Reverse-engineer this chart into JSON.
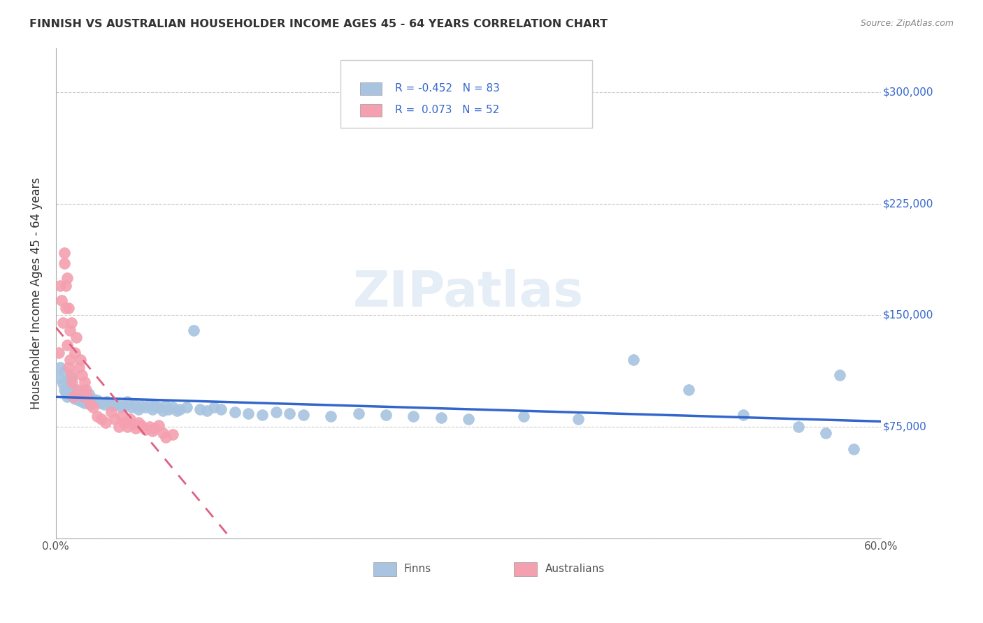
{
  "title": "FINNISH VS AUSTRALIAN HOUSEHOLDER INCOME AGES 45 - 64 YEARS CORRELATION CHART",
  "source": "Source: ZipAtlas.com",
  "ylabel": "Householder Income Ages 45 - 64 years",
  "xlim": [
    0.0,
    0.6
  ],
  "ylim": [
    0,
    330000
  ],
  "yticks": [
    0,
    75000,
    150000,
    225000,
    300000
  ],
  "xticks": [
    0.0,
    0.1,
    0.2,
    0.3,
    0.4,
    0.5,
    0.6
  ],
  "xtick_labels": [
    "0.0%",
    "",
    "",
    "",
    "",
    "",
    "60.0%"
  ],
  "finns_color": "#a8c4e0",
  "australians_color": "#f4a0b0",
  "finns_line_color": "#3366cc",
  "australians_line_color": "#e06080",
  "finns_R": -0.452,
  "finns_N": 83,
  "australians_R": 0.073,
  "australians_N": 52,
  "watermark": "ZIPatlas",
  "background_color": "#ffffff",
  "grid_color": "#cccccc",
  "title_color": "#333333",
  "axis_label_color": "#333333",
  "right_label_color": "#3366cc",
  "finns_x": [
    0.002,
    0.003,
    0.005,
    0.006,
    0.006,
    0.007,
    0.008,
    0.008,
    0.009,
    0.009,
    0.01,
    0.01,
    0.011,
    0.011,
    0.012,
    0.012,
    0.013,
    0.014,
    0.015,
    0.016,
    0.017,
    0.018,
    0.019,
    0.02,
    0.021,
    0.022,
    0.023,
    0.024,
    0.025,
    0.027,
    0.028,
    0.03,
    0.032,
    0.035,
    0.037,
    0.04,
    0.042,
    0.045,
    0.048,
    0.05,
    0.052,
    0.055,
    0.057,
    0.06,
    0.062,
    0.065,
    0.068,
    0.07,
    0.072,
    0.075,
    0.078,
    0.08,
    0.082,
    0.085,
    0.088,
    0.09,
    0.095,
    0.1,
    0.105,
    0.11,
    0.115,
    0.12,
    0.13,
    0.14,
    0.15,
    0.16,
    0.17,
    0.18,
    0.2,
    0.22,
    0.24,
    0.26,
    0.28,
    0.3,
    0.34,
    0.38,
    0.42,
    0.46,
    0.5,
    0.54,
    0.56,
    0.57,
    0.58
  ],
  "finns_y": [
    108000,
    115000,
    104000,
    100000,
    112000,
    98000,
    95000,
    105000,
    99000,
    102000,
    97000,
    103000,
    96000,
    108000,
    95000,
    101000,
    98000,
    94000,
    97000,
    99000,
    93000,
    96000,
    92000,
    98000,
    91000,
    95000,
    93000,
    97000,
    90000,
    94000,
    92000,
    93000,
    91000,
    90000,
    92000,
    89000,
    91000,
    90000,
    88000,
    89000,
    92000,
    88000,
    90000,
    87000,
    89000,
    88000,
    90000,
    87000,
    89000,
    88000,
    86000,
    89000,
    87000,
    88000,
    86000,
    87000,
    88000,
    140000,
    87000,
    86000,
    88000,
    87000,
    85000,
    84000,
    83000,
    85000,
    84000,
    83000,
    82000,
    84000,
    83000,
    82000,
    81000,
    80000,
    82000,
    80000,
    120000,
    100000,
    83000,
    75000,
    71000,
    110000,
    60000
  ],
  "australians_x": [
    0.002,
    0.003,
    0.004,
    0.005,
    0.006,
    0.006,
    0.007,
    0.007,
    0.008,
    0.008,
    0.009,
    0.009,
    0.01,
    0.01,
    0.011,
    0.011,
    0.012,
    0.013,
    0.014,
    0.015,
    0.016,
    0.017,
    0.018,
    0.019,
    0.02,
    0.021,
    0.022,
    0.023,
    0.025,
    0.027,
    0.03,
    0.033,
    0.036,
    0.04,
    0.043,
    0.046,
    0.048,
    0.05,
    0.052,
    0.054,
    0.056,
    0.058,
    0.06,
    0.062,
    0.065,
    0.068,
    0.07,
    0.072,
    0.075,
    0.078,
    0.08,
    0.085
  ],
  "australians_y": [
    125000,
    170000,
    160000,
    145000,
    185000,
    192000,
    170000,
    155000,
    130000,
    175000,
    115000,
    155000,
    120000,
    140000,
    110000,
    145000,
    105000,
    95000,
    125000,
    135000,
    100000,
    115000,
    120000,
    110000,
    95000,
    105000,
    100000,
    95000,
    90000,
    88000,
    82000,
    80000,
    78000,
    85000,
    80000,
    75000,
    82000,
    78000,
    75000,
    80000,
    77000,
    74000,
    78000,
    76000,
    73000,
    75000,
    72000,
    74000,
    76000,
    71000,
    68000,
    70000
  ]
}
